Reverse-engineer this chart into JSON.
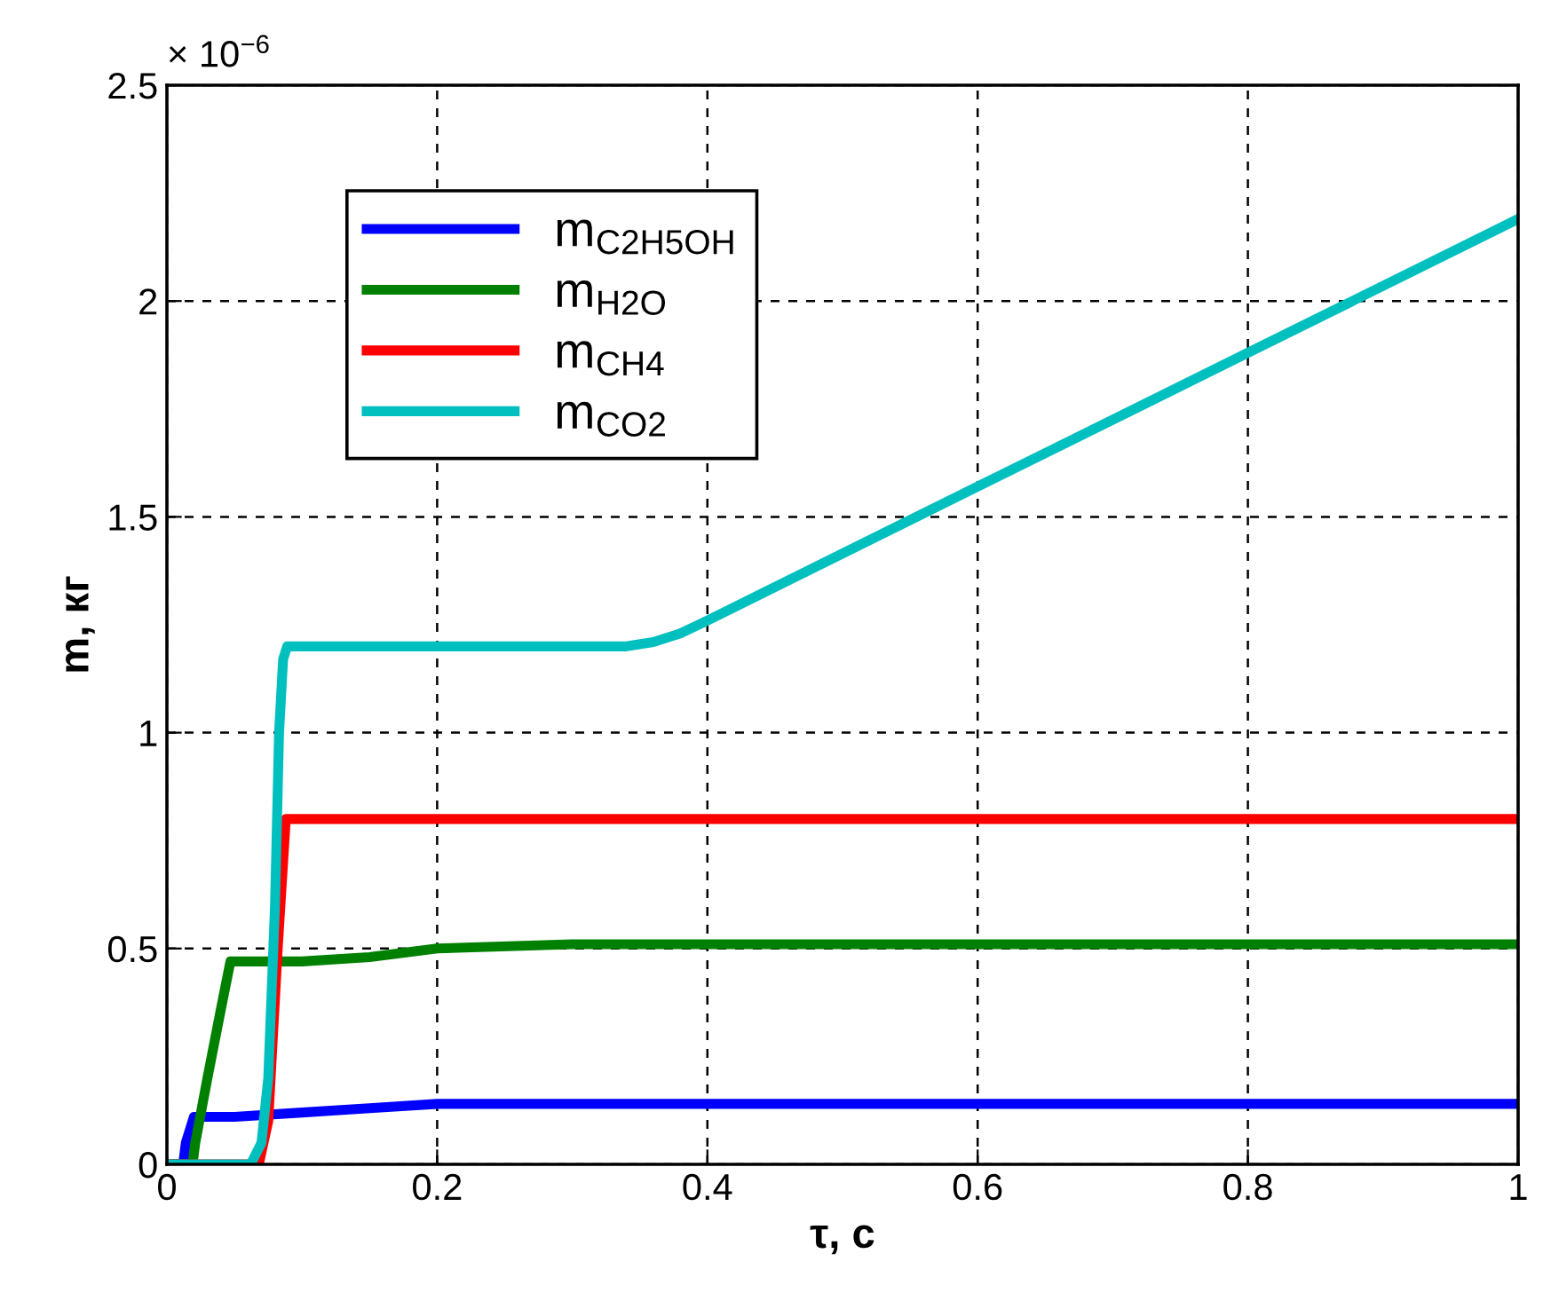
{
  "chart_data": {
    "type": "line",
    "xlabel": "τ, с",
    "ylabel": "m, кг",
    "annotations": [
      "× 10$^{−6}$"
    ],
    "xlim": [
      0,
      1
    ],
    "xticks": [
      0,
      0.2,
      0.4,
      0.6,
      0.8,
      1
    ],
    "ylim": [
      0,
      2.5
    ],
    "yticks": [
      0,
      0.5,
      1,
      1.5,
      2,
      2.5
    ],
    "grid": true,
    "legend": "top left",
    "line_style": "solid",
    "marker": "none",
    "series": [
      {
        "name": "m$_{C2H5OH}$",
        "color": "#0000ff",
        "x": [
          0,
          0.012,
          0.014,
          0.02,
          0.05,
          0.1,
          0.15,
          0.2,
          0.3,
          1
        ],
        "values": [
          0,
          0,
          0.05,
          0.11,
          0.11,
          0.12,
          0.13,
          0.14,
          0.14,
          0.14
        ]
      },
      {
        "name": "m$_{H2O}$",
        "color": "#008000",
        "x": [
          0,
          0.019,
          0.021,
          0.03,
          0.04,
          0.047,
          0.1,
          0.15,
          0.2,
          0.3,
          1
        ],
        "values": [
          0,
          0,
          0.05,
          0.2,
          0.36,
          0.47,
          0.47,
          0.48,
          0.5,
          0.51,
          0.51
        ]
      },
      {
        "name": "m$_{CH4}$",
        "color": "#ff0000",
        "x": [
          0,
          0.068,
          0.075,
          0.082,
          0.088,
          1
        ],
        "values": [
          0,
          0,
          0.1,
          0.5,
          0.8,
          0.8
        ]
      },
      {
        "name": "m$_{CO2}$",
        "color": "#00bfbf",
        "x": [
          0,
          0.062,
          0.07,
          0.075,
          0.08,
          0.083,
          0.086,
          0.089,
          0.2,
          0.34,
          0.36,
          0.38,
          0.4,
          0.6,
          0.8,
          1
        ],
        "values": [
          0,
          0,
          0.05,
          0.2,
          0.6,
          1.0,
          1.17,
          1.2,
          1.2,
          1.2,
          1.21,
          1.23,
          1.26,
          1.57,
          1.88,
          2.19
        ]
      }
    ]
  }
}
